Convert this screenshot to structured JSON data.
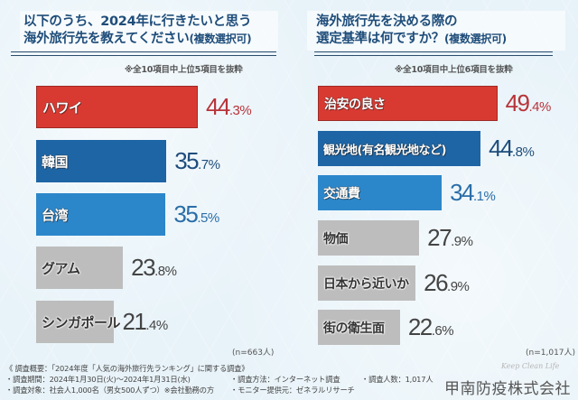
{
  "colors": {
    "red": "#d83a32",
    "red_text": "#b7343a",
    "dark_blue": "#1e65a5",
    "dark_blue_text": "#1e4d7c",
    "mid_blue": "#2c87ca",
    "mid_blue_text": "#2a6ea8",
    "gray": "#bdbdbd",
    "gray_text": "#444444",
    "title": "#1f4d7a"
  },
  "chart_data": [
    {
      "type": "bar",
      "orientation": "horizontal",
      "title_line1": "以下のうち、2024年に行きたいと思う",
      "title_line2": "海外旅行先を教えてください",
      "title_suffix": "(複数選択可)",
      "note": "※全10項目中上位5項目を抜粋",
      "sample": "(n=663人)",
      "unit": "%",
      "categories": [
        "ハワイ",
        "韓国",
        "台湾",
        "グアム",
        "シンガポール"
      ],
      "values": [
        44.3,
        35.7,
        35.5,
        23.8,
        21.4
      ],
      "value_labels": [
        {
          "int": "44",
          "dec": ".3%"
        },
        {
          "int": "35",
          "dec": ".7%"
        },
        {
          "int": "35",
          "dec": ".5%"
        },
        {
          "int": "23",
          "dec": ".8%"
        },
        {
          "int": "21",
          "dec": ".4%"
        }
      ],
      "bar_styles": [
        "red",
        "dark_blue",
        "mid_blue",
        "gray",
        "gray"
      ]
    },
    {
      "type": "bar",
      "orientation": "horizontal",
      "title_line1": "海外旅行先を決める際の",
      "title_line2": "選定基準は何ですか？",
      "title_suffix": "(複数選択可)",
      "note": "※全10項目中上位6項目を抜粋",
      "sample": "(n=1,017人)",
      "unit": "%",
      "categories": [
        "治安の良さ",
        "観光地(有名観光地など)",
        "交通費",
        "物価",
        "日本から近いか",
        "街の衛生面"
      ],
      "values": [
        49.4,
        44.8,
        34.1,
        27.9,
        26.9,
        22.6
      ],
      "value_labels": [
        {
          "int": "49",
          "dec": ".4%"
        },
        {
          "int": "44",
          "dec": ".8%"
        },
        {
          "int": "34",
          "dec": ".1%"
        },
        {
          "int": "27",
          "dec": ".9%"
        },
        {
          "int": "26",
          "dec": ".9%"
        },
        {
          "int": "22",
          "dec": ".6%"
        }
      ],
      "bar_styles": [
        "red",
        "dark_blue",
        "mid_blue",
        "gray",
        "gray",
        "gray"
      ]
    }
  ],
  "footer": {
    "line1": "《 調査概要：「2024年度「人気の海外旅行先ランキング」に関する調査》",
    "period": "・調査期間：2024年1月30日(火)～2024年1月31日(水)",
    "target": "・調査対象：社会人1,000名（男女500人ずつ）※会社勤務の方",
    "method": "・調査方法：インターネット調査",
    "provider": "・モニター提供元：ゼネラルリサーチ",
    "count": "・調査人数：1,017人",
    "tagline": "Keep Clean Life",
    "company": "甲南防疫株式会社"
  }
}
